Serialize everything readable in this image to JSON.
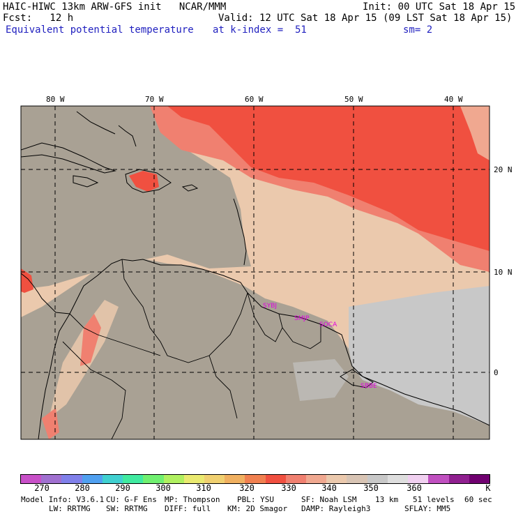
{
  "header": {
    "line1_left": "HAIC-HIWC 13km ARW-GFS init   NCAR/MMM",
    "line1_right": "Init: 00 UTC Sat 18 Apr 15",
    "line2_left": "Fcst:   12 h",
    "line2_right": "Valid: 12 UTC Sat 18 Apr 15 (09 LST Sat 18 Apr 15)",
    "line3_left": "Equivalent potential temperature",
    "line3_mid": "at k-index =  51",
    "line3_right": "sm= 2"
  },
  "map": {
    "lon_labels": [
      "80 W",
      "70 W",
      "60 W",
      "50 W",
      "40 W"
    ],
    "lat_labels": [
      "20 N",
      "10 N",
      "0"
    ],
    "station_labels": [
      "SYBJ",
      "SMJP",
      "SOCA",
      "SBBE"
    ],
    "label_color": "#e000e0",
    "land_color": "#a9a194",
    "ocean_color": "#ebc9ad"
  },
  "colorbar": {
    "colors": [
      "#c850c8",
      "#a070d0",
      "#8080ea",
      "#50a0f0",
      "#40d0d0",
      "#40eaa0",
      "#70f070",
      "#b0f060",
      "#eaea70",
      "#f0d070",
      "#f0b060",
      "#f08050",
      "#f05040",
      "#f08070",
      "#f0a890",
      "#ebc9ad",
      "#d8c4b4",
      "#c8c8c8",
      "#dedede",
      "#f0d0f0",
      "#c050c0",
      "#902090",
      "#700070"
    ],
    "labels": [
      "270",
      "280",
      "290",
      "300",
      "310",
      "320",
      "330",
      "340",
      "350",
      "360",
      "K"
    ]
  },
  "footer": {
    "model_info": "Model Info: V3.6.1",
    "cu": "CU: G-F Ens",
    "mp": "MP: Thompson",
    "pbl": "PBL: YSU",
    "sf": "SF: Noah LSM",
    "res": "13 km",
    "levels": "51 levels",
    "dt": "60 sec",
    "lw": "LW: RRTMG",
    "sw": "SW: RRTMG",
    "diff": "DIFF: full",
    "km": "KM: 2D Smagor",
    "damp": "DAMP: Rayleigh3",
    "sflay": "SFLAY: MM5"
  }
}
